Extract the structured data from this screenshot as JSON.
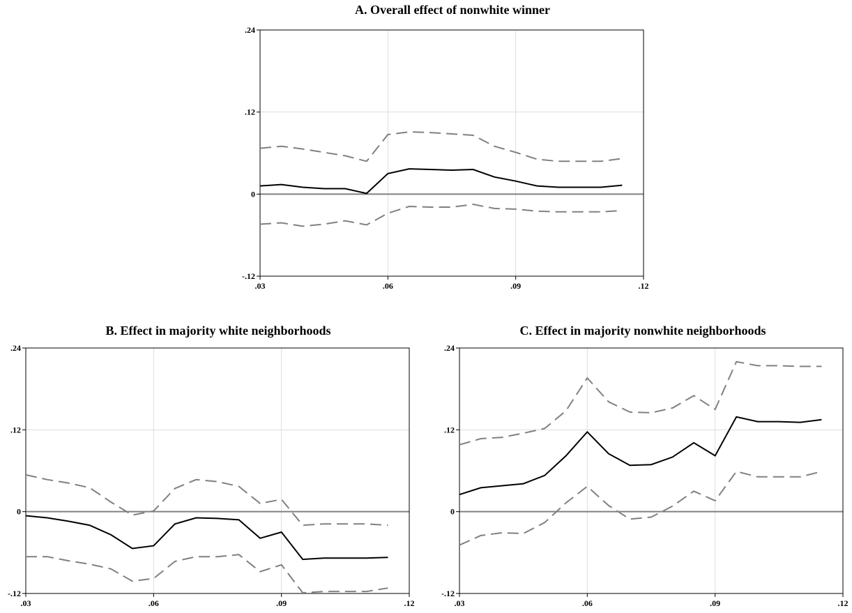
{
  "chart_data": [
    {
      "type": "line",
      "title": "A. Overall effect of nonwhite winner",
      "xlim": [
        0.03,
        0.12
      ],
      "ylim": [
        -0.12,
        0.24
      ],
      "x_ticks": [
        ".03",
        ".06",
        ".09",
        ".12"
      ],
      "y_ticks": [
        ".24",
        ".12",
        "0",
        "-.12"
      ],
      "grid": true,
      "x": [
        0.03,
        0.035,
        0.04,
        0.045,
        0.05,
        0.055,
        0.06,
        0.065,
        0.07,
        0.075,
        0.08,
        0.085,
        0.09,
        0.095,
        0.1,
        0.105,
        0.11,
        0.115
      ],
      "series": [
        {
          "values": [
            0.012,
            0.014,
            0.01,
            0.008,
            0.008,
            0.001,
            0.03,
            0.037,
            0.036,
            0.035,
            0.036,
            0.025,
            0.019,
            0.012,
            0.01,
            0.01,
            0.01,
            0.013
          ],
          "style": "solid",
          "color": "#000000"
        },
        {
          "values": [
            0.067,
            0.07,
            0.066,
            0.061,
            0.056,
            0.048,
            0.087,
            0.091,
            0.09,
            0.088,
            0.086,
            0.07,
            0.061,
            0.051,
            0.048,
            0.048,
            0.048,
            0.052
          ],
          "style": "dashed",
          "color": "#808080"
        },
        {
          "values": [
            -0.044,
            -0.042,
            -0.047,
            -0.044,
            -0.039,
            -0.045,
            -0.028,
            -0.018,
            -0.019,
            -0.019,
            -0.015,
            -0.021,
            -0.022,
            -0.025,
            -0.026,
            -0.026,
            -0.026,
            -0.024
          ],
          "style": "dashed",
          "color": "#808080"
        }
      ]
    },
    {
      "type": "line",
      "title": "B. Effect in majority white neighborhoods",
      "xlim": [
        0.03,
        0.12
      ],
      "ylim": [
        -0.12,
        0.24
      ],
      "x_ticks": [
        ".03",
        ".06",
        ".09",
        ".12"
      ],
      "y_ticks": [
        ".24",
        ".12",
        "0",
        "-.12"
      ],
      "grid": true,
      "x": [
        0.03,
        0.035,
        0.04,
        0.045,
        0.05,
        0.055,
        0.06,
        0.065,
        0.07,
        0.075,
        0.08,
        0.085,
        0.09,
        0.095,
        0.1,
        0.105,
        0.11,
        0.115
      ],
      "series": [
        {
          "values": [
            -0.006,
            -0.009,
            -0.014,
            -0.02,
            -0.034,
            -0.054,
            -0.05,
            -0.018,
            -0.009,
            -0.01,
            -0.012,
            -0.039,
            -0.03,
            -0.07,
            -0.068,
            -0.068,
            -0.068,
            -0.067
          ],
          "style": "solid",
          "color": "#000000"
        },
        {
          "values": [
            0.054,
            0.047,
            0.042,
            0.035,
            0.014,
            -0.005,
            0.001,
            0.034,
            0.047,
            0.044,
            0.037,
            0.012,
            0.018,
            -0.02,
            -0.018,
            -0.018,
            -0.018,
            -0.02
          ],
          "style": "dashed",
          "color": "#808080"
        },
        {
          "values": [
            -0.066,
            -0.066,
            -0.072,
            -0.077,
            -0.084,
            -0.102,
            -0.098,
            -0.073,
            -0.066,
            -0.066,
            -0.063,
            -0.088,
            -0.078,
            -0.119,
            -0.117,
            -0.117,
            -0.117,
            -0.112
          ],
          "style": "dashed",
          "color": "#808080"
        }
      ]
    },
    {
      "type": "line",
      "title": "C. Effect in majority nonwhite neighborhoods",
      "xlim": [
        0.03,
        0.12
      ],
      "ylim": [
        -0.12,
        0.24
      ],
      "x_ticks": [
        ".03",
        ".06",
        ".09",
        ".12"
      ],
      "y_ticks": [
        ".24",
        ".12",
        "0",
        "-.12"
      ],
      "grid": true,
      "x": [
        0.03,
        0.035,
        0.04,
        0.045,
        0.05,
        0.055,
        0.06,
        0.065,
        0.07,
        0.075,
        0.08,
        0.085,
        0.09,
        0.095,
        0.1,
        0.105,
        0.11,
        0.115
      ],
      "series": [
        {
          "values": [
            0.025,
            0.035,
            0.038,
            0.041,
            0.053,
            0.082,
            0.117,
            0.085,
            0.068,
            0.069,
            0.08,
            0.101,
            0.082,
            0.139,
            0.132,
            0.132,
            0.131,
            0.135
          ],
          "style": "solid",
          "color": "#000000"
        },
        {
          "values": [
            0.098,
            0.107,
            0.109,
            0.115,
            0.122,
            0.148,
            0.196,
            0.161,
            0.146,
            0.145,
            0.152,
            0.17,
            0.15,
            0.22,
            0.214,
            0.214,
            0.213,
            0.213
          ],
          "style": "dashed",
          "color": "#808080"
        },
        {
          "values": [
            -0.049,
            -0.035,
            -0.031,
            -0.032,
            -0.016,
            0.013,
            0.037,
            0.009,
            -0.011,
            -0.008,
            0.008,
            0.03,
            0.016,
            0.059,
            0.051,
            0.051,
            0.051,
            0.059
          ],
          "style": "dashed",
          "color": "#808080"
        }
      ]
    }
  ]
}
